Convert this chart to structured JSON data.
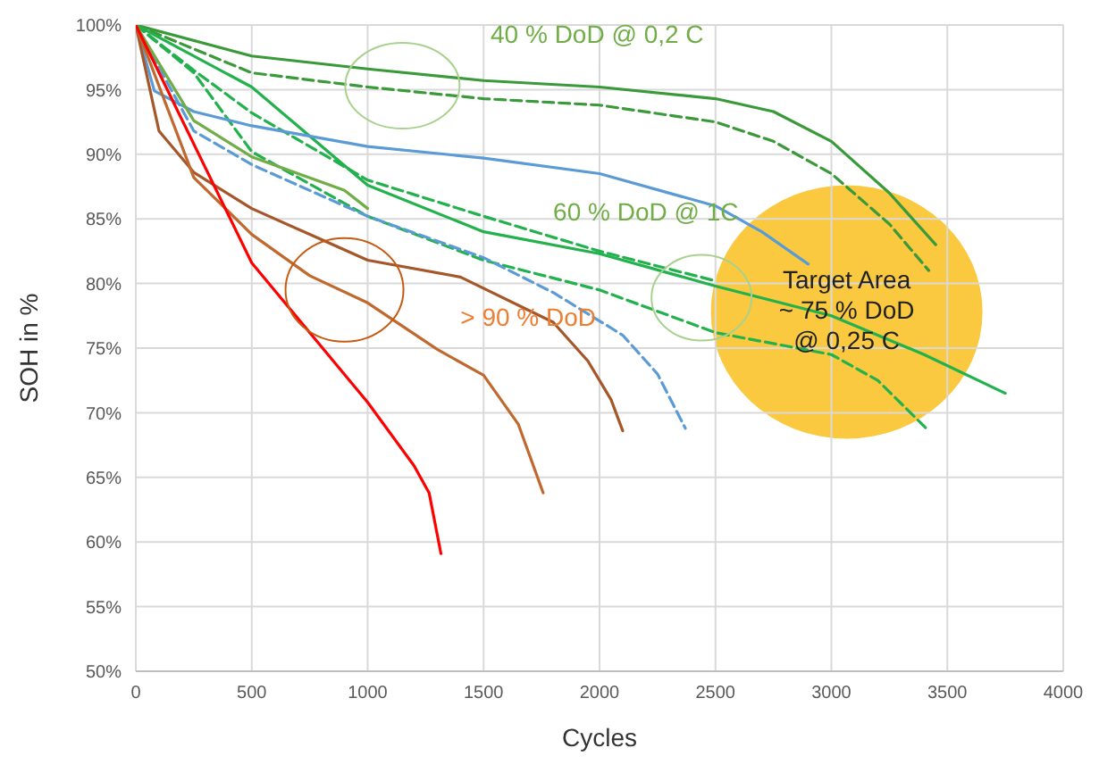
{
  "chart_data": {
    "type": "line",
    "xlabel": "Cycles",
    "ylabel": "SOH in %",
    "xlim": [
      0,
      4000
    ],
    "xticks": [
      0,
      500,
      1000,
      1500,
      2000,
      2500,
      3000,
      3500,
      4000
    ],
    "ylim": [
      50,
      100
    ],
    "yticks": [
      {
        "value": 50,
        "label": "50%"
      },
      {
        "value": 55,
        "label": "55%"
      },
      {
        "value": 60,
        "label": "60%"
      },
      {
        "value": 65,
        "label": "65%"
      },
      {
        "value": 70,
        "label": "70%"
      },
      {
        "value": 75,
        "label": "75%"
      },
      {
        "value": 80,
        "label": "80%"
      },
      {
        "value": 85,
        "label": "85%"
      },
      {
        "value": 90,
        "label": "90%"
      },
      {
        "value": 95,
        "label": "95%"
      },
      {
        "value": 100,
        "label": "100%"
      }
    ],
    "grid": true,
    "marker": "none",
    "annotations": [
      "40 % DoD @ 0,2 C",
      "60 % DoD @ 1C",
      "> 90 % DoD",
      "Target Area\n~ 75 % DoD\n@ 0,25 C"
    ],
    "series": [
      {
        "color": "#3a9a3a",
        "line_style": "solid",
        "x": [
          0,
          500,
          1000,
          1500,
          2000,
          2500,
          2750,
          3000,
          3250,
          3450
        ],
        "values": [
          100,
          97.6,
          96.6,
          95.7,
          95.2,
          94.3,
          93.3,
          91,
          87,
          83
        ]
      },
      {
        "color": "#3a9a3a",
        "line_style": "dashed",
        "x": [
          0,
          500,
          1000,
          1500,
          2000,
          2500,
          2750,
          3000,
          3250,
          3420
        ],
        "values": [
          100,
          96.3,
          95.2,
          94.3,
          93.8,
          92.5,
          91,
          88.5,
          84.6,
          81
        ]
      },
      {
        "color": "#22b14c",
        "line_style": "solid",
        "x": [
          0,
          500,
          1000,
          1500,
          2000,
          2500,
          3000,
          3400,
          3750
        ],
        "values": [
          100,
          95.2,
          87.6,
          84,
          82.3,
          79.8,
          77.5,
          74.5,
          71.5
        ]
      },
      {
        "color": "#22b14c",
        "line_style": "dashed",
        "x": [
          0,
          250,
          500,
          1000,
          1500,
          2000,
          2500
        ],
        "values": [
          100,
          96.5,
          93.2,
          88,
          85.2,
          82.5,
          80.2
        ]
      },
      {
        "color": "#22b14c",
        "line_style": "dashed",
        "x": [
          0,
          250,
          500,
          1000,
          1500,
          2000,
          2500,
          3000,
          3200,
          3420
        ],
        "values": [
          100,
          96.3,
          90.2,
          85.2,
          81.8,
          79.5,
          76.2,
          74.5,
          72.5,
          68.6
        ]
      },
      {
        "color": "#5b9bd5",
        "line_style": "solid",
        "x": [
          0,
          80,
          250,
          500,
          1000,
          1500,
          2000,
          2500,
          2700,
          2900
        ],
        "values": [
          100,
          94.9,
          93.3,
          92.2,
          90.6,
          89.7,
          88.5,
          86,
          84,
          81.5
        ]
      },
      {
        "color": "#5b9bd5",
        "line_style": "dashed",
        "x": [
          0,
          250,
          500,
          1000,
          1500,
          1800,
          2100,
          2250,
          2370
        ],
        "values": [
          100,
          91.8,
          89.2,
          85.2,
          82,
          79.3,
          76,
          73,
          68.8
        ]
      },
      {
        "color": "#70ad47",
        "line_style": "solid",
        "x": [
          0,
          250,
          500,
          900,
          1000
        ],
        "values": [
          100,
          92.6,
          89.8,
          87.2,
          85.8
        ]
      },
      {
        "color": "#a5572a",
        "line_style": "solid",
        "x": [
          0,
          100,
          250,
          500,
          750,
          1000,
          1400,
          1800,
          1950,
          2050,
          2100
        ],
        "values": [
          100,
          91.8,
          88.6,
          85.8,
          83.8,
          81.8,
          80.5,
          77,
          74,
          71,
          68.6
        ]
      },
      {
        "color": "#c0692f",
        "line_style": "solid",
        "x": [
          0,
          250,
          500,
          750,
          1000,
          1300,
          1500,
          1650,
          1757
        ],
        "values": [
          100,
          88.2,
          83.8,
          80.6,
          78.5,
          74.9,
          72.9,
          69.1,
          63.8
        ]
      },
      {
        "color": "#ff0000",
        "line_style": "solid",
        "x": [
          0,
          500,
          1000,
          1200,
          1265,
          1316
        ],
        "values": [
          100,
          81.6,
          70.8,
          65.9,
          63.8,
          59.1
        ]
      }
    ]
  }
}
